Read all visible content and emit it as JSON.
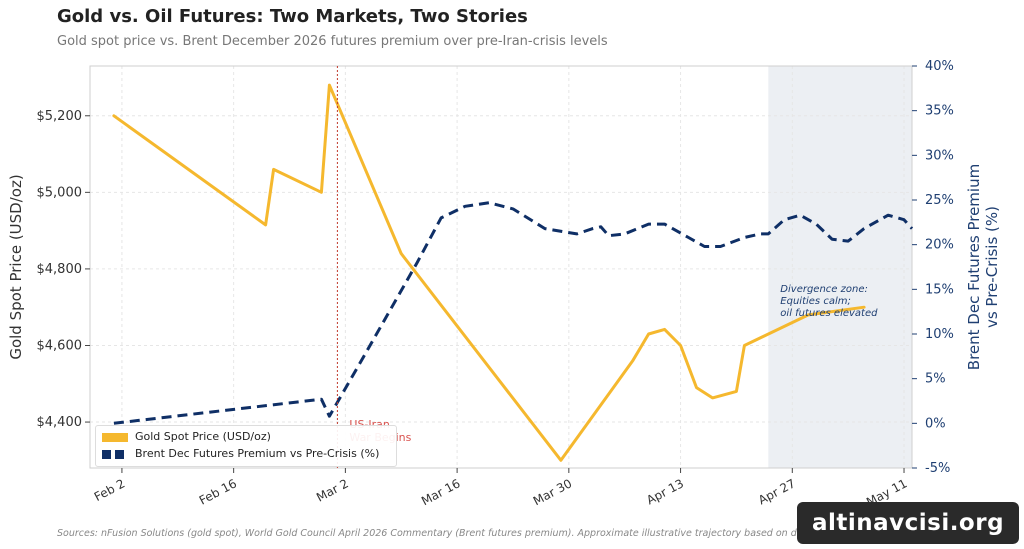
{
  "page": {
    "title": "Gold vs. Oil Futures: Two Markets, Two Stories",
    "subtitle": "Gold spot price vs. Brent December 2026 futures premium over pre-Iran-crisis levels",
    "footer": "Sources: nFusion Solutions (gold spot), World Gold Council April 2026 Commentary (Brent futures premium).  Approximate illustrative trajectory based on documented data points and reported trends.",
    "watermark": "altinavcisi.org"
  },
  "chart_data": {
    "type": "line",
    "title": "Gold vs. Oil Futures: Two Markets, Two Stories",
    "subtitle": "Gold spot price vs. Brent December 2026 futures premium over pre-Iran-crisis levels",
    "ylabel": "Gold Spot Price (USD/oz)",
    "ylabel_right": "Brent Dec Futures Premium vs Pre-Crisis (%)",
    "ylim": [
      4280,
      5330
    ],
    "ylim_right": [
      -5,
      40
    ],
    "yticks": [
      {
        "value": 4400,
        "label": "$4,400"
      },
      {
        "value": 4600,
        "label": "$4,600"
      },
      {
        "value": 4800,
        "label": "$4,800"
      },
      {
        "value": 5000,
        "label": "$5,000"
      },
      {
        "value": 5200,
        "label": "$5,200"
      }
    ],
    "yticks_right": [
      {
        "value": -5,
        "label": "-5%"
      },
      {
        "value": 0,
        "label": "0%"
      },
      {
        "value": 5,
        "label": "5%"
      },
      {
        "value": 10,
        "label": "10%"
      },
      {
        "value": 15,
        "label": "15%"
      },
      {
        "value": 20,
        "label": "20%"
      },
      {
        "value": 25,
        "label": "25%"
      },
      {
        "value": 30,
        "label": "30%"
      },
      {
        "value": 35,
        "label": "35%"
      },
      {
        "value": 40,
        "label": "40%"
      }
    ],
    "xlim": [
      "2026-01-29",
      "2026-05-12"
    ],
    "xticks": [
      {
        "date": "2026-02-02",
        "label": "Feb 2"
      },
      {
        "date": "2026-02-16",
        "label": "Feb 16"
      },
      {
        "date": "2026-03-02",
        "label": "Mar 2"
      },
      {
        "date": "2026-03-16",
        "label": "Mar 16"
      },
      {
        "date": "2026-03-30",
        "label": "Mar 30"
      },
      {
        "date": "2026-04-13",
        "label": "Apr 13"
      },
      {
        "date": "2026-04-27",
        "label": "Apr 27"
      },
      {
        "date": "2026-05-11",
        "label": "May 11"
      }
    ],
    "grid": true,
    "legend_position": "bottom-left",
    "series": [
      {
        "name": "Gold Spot Price (USD/oz)",
        "axis": "left",
        "color": "#f5b82e",
        "style": "solid",
        "points": [
          [
            "2026-02-01",
            5200
          ],
          [
            "2026-02-20",
            4915
          ],
          [
            "2026-02-21",
            5060
          ],
          [
            "2026-02-27",
            5000
          ],
          [
            "2026-02-28",
            5280
          ],
          [
            "2026-03-09",
            4840
          ],
          [
            "2026-03-29",
            4300
          ],
          [
            "2026-04-07",
            4560
          ],
          [
            "2026-04-09",
            4630
          ],
          [
            "2026-04-11",
            4642
          ],
          [
            "2026-04-13",
            4600
          ],
          [
            "2026-04-15",
            4490
          ],
          [
            "2026-04-17",
            4463
          ],
          [
            "2026-04-20",
            4480
          ],
          [
            "2026-04-21",
            4600
          ],
          [
            "2026-04-29",
            4680
          ],
          [
            "2026-05-06",
            4700
          ]
        ]
      },
      {
        "name": "Brent Dec Futures Premium vs Pre-Crisis (%)",
        "axis": "right",
        "color": "#0f2f66",
        "style": "dashed",
        "points": [
          [
            "2026-02-01",
            0
          ],
          [
            "2026-02-27",
            2.7
          ],
          [
            "2026-02-28",
            0.8
          ],
          [
            "2026-03-04",
            7
          ],
          [
            "2026-03-11",
            18
          ],
          [
            "2026-03-14",
            23
          ],
          [
            "2026-03-17",
            24.3
          ],
          [
            "2026-03-20",
            24.7
          ],
          [
            "2026-03-23",
            24
          ],
          [
            "2026-03-27",
            21.8
          ],
          [
            "2026-03-31",
            21.2
          ],
          [
            "2026-04-02",
            21.8
          ],
          [
            "2026-04-03",
            22
          ],
          [
            "2026-04-04",
            21
          ],
          [
            "2026-04-06",
            21.2
          ],
          [
            "2026-04-09",
            22.3
          ],
          [
            "2026-04-11",
            22.3
          ],
          [
            "2026-04-14",
            20.8
          ],
          [
            "2026-04-16",
            19.8
          ],
          [
            "2026-04-18",
            19.8
          ],
          [
            "2026-04-21",
            20.8
          ],
          [
            "2026-04-23",
            21.2
          ],
          [
            "2026-04-24",
            21.2
          ],
          [
            "2026-04-26",
            22.8
          ],
          [
            "2026-04-28",
            23.3
          ],
          [
            "2026-04-30",
            22.3
          ],
          [
            "2026-05-02",
            20.6
          ],
          [
            "2026-05-04",
            20.4
          ],
          [
            "2026-05-06",
            21.8
          ],
          [
            "2026-05-09",
            23.3
          ],
          [
            "2026-05-11",
            22.8
          ],
          [
            "2026-05-12",
            21.8
          ]
        ]
      }
    ],
    "shaded_region": {
      "start": "2026-04-24",
      "end": "2026-05-12"
    },
    "event_line": {
      "date": "2026-03-01",
      "label_lines": [
        "US-Iran",
        "War Begins"
      ]
    },
    "annotation": {
      "lines": [
        "Divergence zone:",
        "Equities calm;",
        "oil futures elevated"
      ],
      "date": "2026-04-26",
      "value_right": 14.7
    }
  }
}
